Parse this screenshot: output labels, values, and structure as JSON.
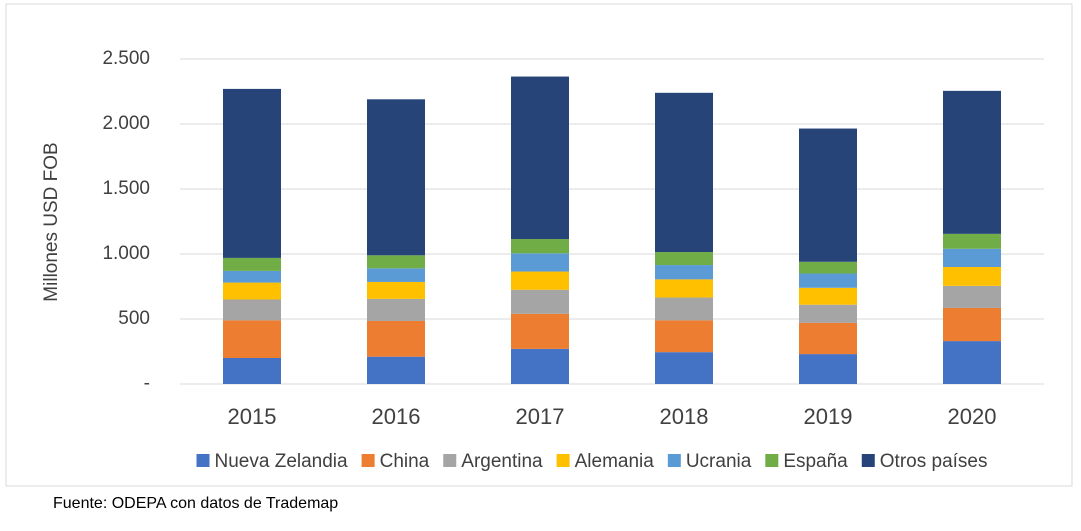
{
  "chart_data": {
    "type": "stacked-bar",
    "y_label": "Millones USD FOB",
    "categories": [
      "2015",
      "2016",
      "2017",
      "2018",
      "2019",
      "2020"
    ],
    "series": [
      {
        "name": "Nueva Zelandia",
        "color": "#4472c4",
        "values": [
          200,
          210,
          270,
          245,
          230,
          330
        ]
      },
      {
        "name": "China",
        "color": "#ed7d31",
        "values": [
          290,
          275,
          270,
          245,
          240,
          255
        ]
      },
      {
        "name": "Argentina",
        "color": "#a5a5a5",
        "values": [
          160,
          170,
          185,
          175,
          140,
          170
        ]
      },
      {
        "name": "Alemania",
        "color": "#ffc000",
        "values": [
          130,
          130,
          140,
          140,
          130,
          145
        ]
      },
      {
        "name": "Ucrania",
        "color": "#5b9bd5",
        "values": [
          90,
          105,
          140,
          110,
          110,
          140
        ]
      },
      {
        "name": "España",
        "color": "#70ad47",
        "values": [
          100,
          100,
          110,
          100,
          90,
          115
        ]
      },
      {
        "name": "Otros países",
        "color": "#264478",
        "values": [
          1300,
          1200,
          1250,
          1225,
          1025,
          1100
        ]
      }
    ],
    "ylim": [
      0,
      2500
    ],
    "yticks": [
      {
        "value": 0,
        "label": "-"
      },
      500,
      {
        "value": 1000,
        "label": "1.000"
      },
      {
        "value": 1500,
        "label": "1.500"
      },
      {
        "value": 2000,
        "label": "2.000"
      },
      {
        "value": 2500,
        "label": "2.500"
      }
    ],
    "grid": true,
    "legend": "bottom",
    "source": "Fuente: ODEPA con datos de Trademap"
  }
}
